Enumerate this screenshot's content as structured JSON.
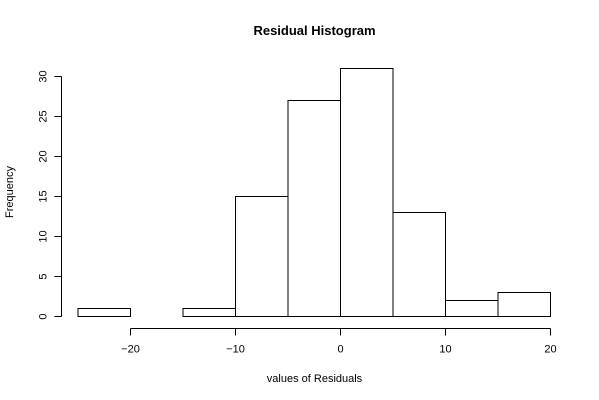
{
  "chart_data": {
    "type": "bar",
    "title": "Residual Histogram",
    "xlabel": "values of Residuals",
    "ylabel": "Frequency",
    "bins": [
      {
        "start": -25,
        "end": -20,
        "count": 1
      },
      {
        "start": -20,
        "end": -15,
        "count": 0
      },
      {
        "start": -15,
        "end": -10,
        "count": 1
      },
      {
        "start": -10,
        "end": -5,
        "count": 15
      },
      {
        "start": -5,
        "end": 0,
        "count": 27
      },
      {
        "start": 0,
        "end": 5,
        "count": 31
      },
      {
        "start": 5,
        "end": 10,
        "count": 13
      },
      {
        "start": 10,
        "end": 15,
        "count": 2
      },
      {
        "start": 15,
        "end": 20,
        "count": 3
      }
    ],
    "xticks": [
      -20,
      -10,
      0,
      10,
      20
    ],
    "yticks": [
      0,
      5,
      10,
      15,
      20,
      25,
      30
    ],
    "xlim": [
      -25,
      20
    ],
    "ylim": [
      0,
      31
    ],
    "grid": false,
    "legend": "none"
  }
}
